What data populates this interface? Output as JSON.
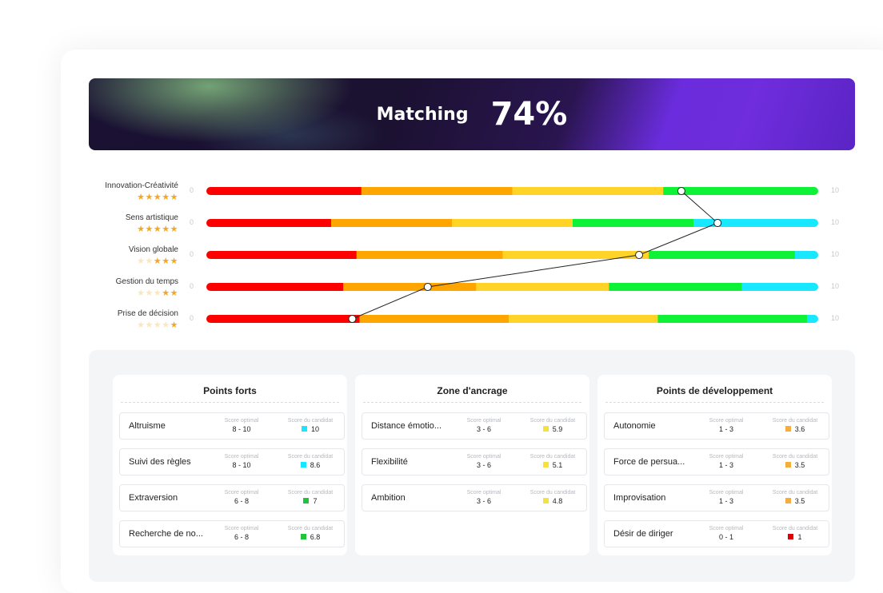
{
  "banner": {
    "label": "Matching",
    "value": "74%"
  },
  "axis": {
    "min": "0",
    "max": "10"
  },
  "traits": [
    {
      "name": "Innovation-Créativité",
      "stars": 5,
      "score": 7.8,
      "segments": [
        [
          "#ff0000",
          2.5
        ],
        [
          "#ffa500",
          2.5
        ],
        [
          "#ffd427",
          2.5
        ],
        [
          "#0df237",
          2.5
        ]
      ]
    },
    {
      "name": "Sens artistique",
      "stars": 5,
      "score": 8.4,
      "segments": [
        [
          "#ff0000",
          2
        ],
        [
          "#ffa500",
          2
        ],
        [
          "#ffd427",
          2
        ],
        [
          "#0df237",
          2
        ],
        [
          "#17e7ff",
          2
        ]
      ]
    },
    {
      "name": "Vision globale",
      "stars": 3,
      "score": 7.1,
      "segments": [
        [
          "#ff0000",
          2.42
        ],
        [
          "#ffa500",
          2.42
        ],
        [
          "#ffd427",
          2.42
        ],
        [
          "#0df237",
          2.42
        ],
        [
          "#17e7ff",
          0.32
        ]
      ]
    },
    {
      "name": "Gestion du temps",
      "stars": 2,
      "score": 3.6,
      "segments": [
        [
          "#ff0000",
          2.2
        ],
        [
          "#ffa500",
          2.2
        ],
        [
          "#ffd427",
          2.2
        ],
        [
          "#0df237",
          2.2
        ],
        [
          "#17e7ff",
          1.2
        ]
      ]
    },
    {
      "name": "Prise de décision",
      "stars": 1,
      "score": 2.35,
      "segments": [
        [
          "#ff0000",
          2.47
        ],
        [
          "#ffa500",
          2.47
        ],
        [
          "#ffd427",
          2.47
        ],
        [
          "#0df237",
          2.47
        ],
        [
          "#17e7ff",
          0.12
        ]
      ]
    }
  ],
  "labels": {
    "optimal": "Score optimal",
    "candidate": "Score du candidat"
  },
  "columns": [
    {
      "title": "Points forts",
      "rows": [
        {
          "name": "Altruisme",
          "optimal": "8 - 10",
          "score": "10",
          "color": "#17e7ff"
        },
        {
          "name": "Suivi des règles",
          "optimal": "8 - 10",
          "score": "8.6",
          "color": "#17e7ff"
        },
        {
          "name": "Extraversion",
          "optimal": "6 - 8",
          "score": "7",
          "color": "#1fc43a"
        },
        {
          "name": "Recherche de no...",
          "optimal": "6 - 8",
          "score": "6.8",
          "color": "#1fc43a"
        }
      ]
    },
    {
      "title": "Zone d'ancrage",
      "rows": [
        {
          "name": "Distance émotio...",
          "optimal": "3 - 6",
          "score": "5.9",
          "color": "#f5e23a"
        },
        {
          "name": "Flexibilité",
          "optimal": "3 - 6",
          "score": "5.1",
          "color": "#f5e23a"
        },
        {
          "name": "Ambition",
          "optimal": "3 - 6",
          "score": "4.8",
          "color": "#f5e23a"
        }
      ]
    },
    {
      "title": "Points de développement",
      "rows": [
        {
          "name": "Autonomie",
          "optimal": "1 - 3",
          "score": "3.6",
          "color": "#f5ad3c"
        },
        {
          "name": "Force de persua...",
          "optimal": "1 - 3",
          "score": "3.5",
          "color": "#f5ad3c"
        },
        {
          "name": "Improvisation",
          "optimal": "1 - 3",
          "score": "3.5",
          "color": "#f5ad3c"
        },
        {
          "name": "Désir de diriger",
          "optimal": "0 - 1",
          "score": "1",
          "color": "#e00000"
        }
      ]
    }
  ]
}
